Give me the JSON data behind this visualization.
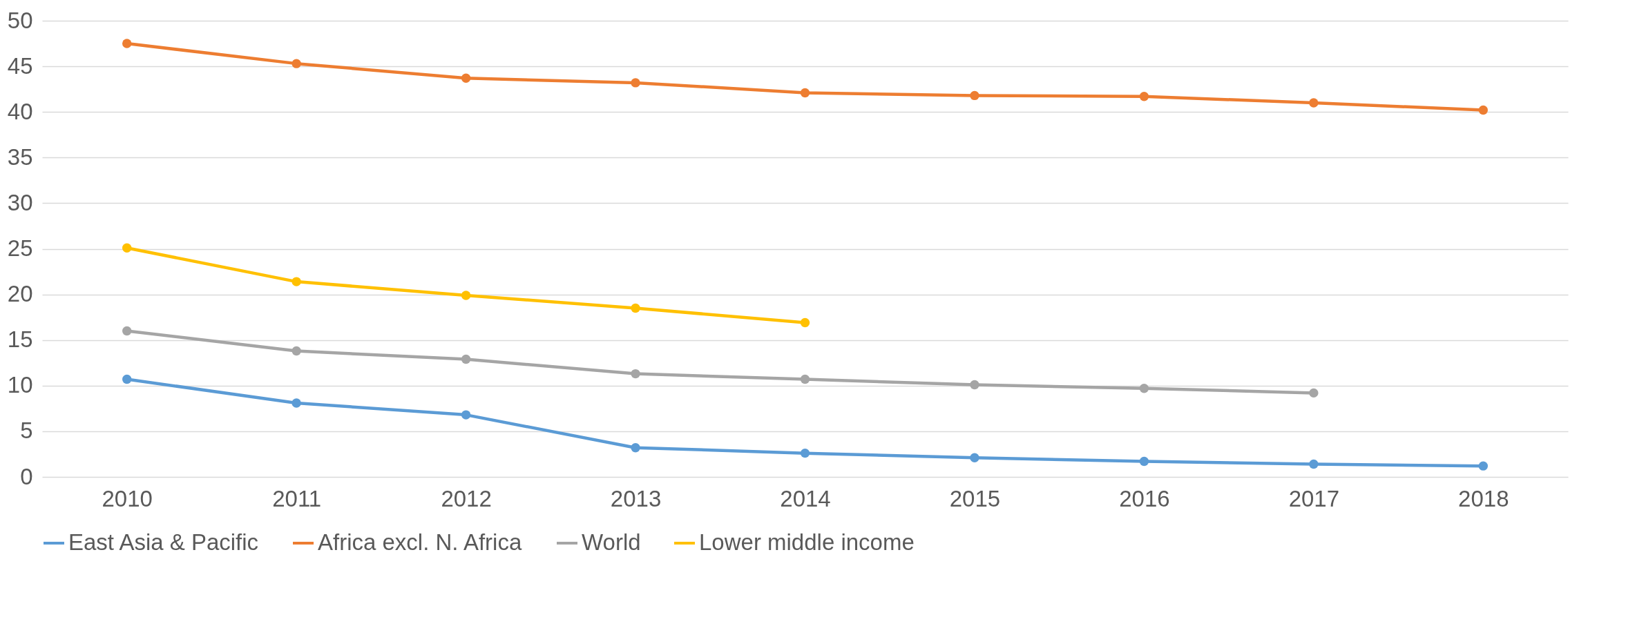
{
  "chart_data": {
    "type": "line",
    "categories": [
      "2010",
      "2011",
      "2012",
      "2013",
      "2014",
      "2015",
      "2016",
      "2017",
      "2018"
    ],
    "series": [
      {
        "name": "East Asia & Pacific",
        "color": "#5b9bd5",
        "values": [
          10.7,
          8.1,
          6.8,
          3.2,
          2.6,
          2.1,
          1.7,
          1.4,
          1.2
        ]
      },
      {
        "name": "Africa excl. N. Africa",
        "color": "#ed7d31",
        "values": [
          47.5,
          45.3,
          43.7,
          43.2,
          42.1,
          41.8,
          41.7,
          41.0,
          40.2
        ]
      },
      {
        "name": "World",
        "color": "#a5a5a5",
        "values": [
          16.0,
          13.8,
          12.9,
          11.3,
          10.7,
          10.1,
          9.7,
          9.2,
          null
        ]
      },
      {
        "name": "Lower middle income",
        "color": "#ffc000",
        "values": [
          25.1,
          21.4,
          19.9,
          18.5,
          16.9,
          null,
          null,
          null,
          null
        ]
      }
    ],
    "ylim": [
      0,
      50
    ],
    "yticks": [
      0,
      5,
      10,
      15,
      20,
      25,
      30,
      35,
      40,
      45,
      50
    ],
    "grid": "y",
    "legend": "bottom",
    "marker": "circle",
    "line_style": "solid"
  }
}
